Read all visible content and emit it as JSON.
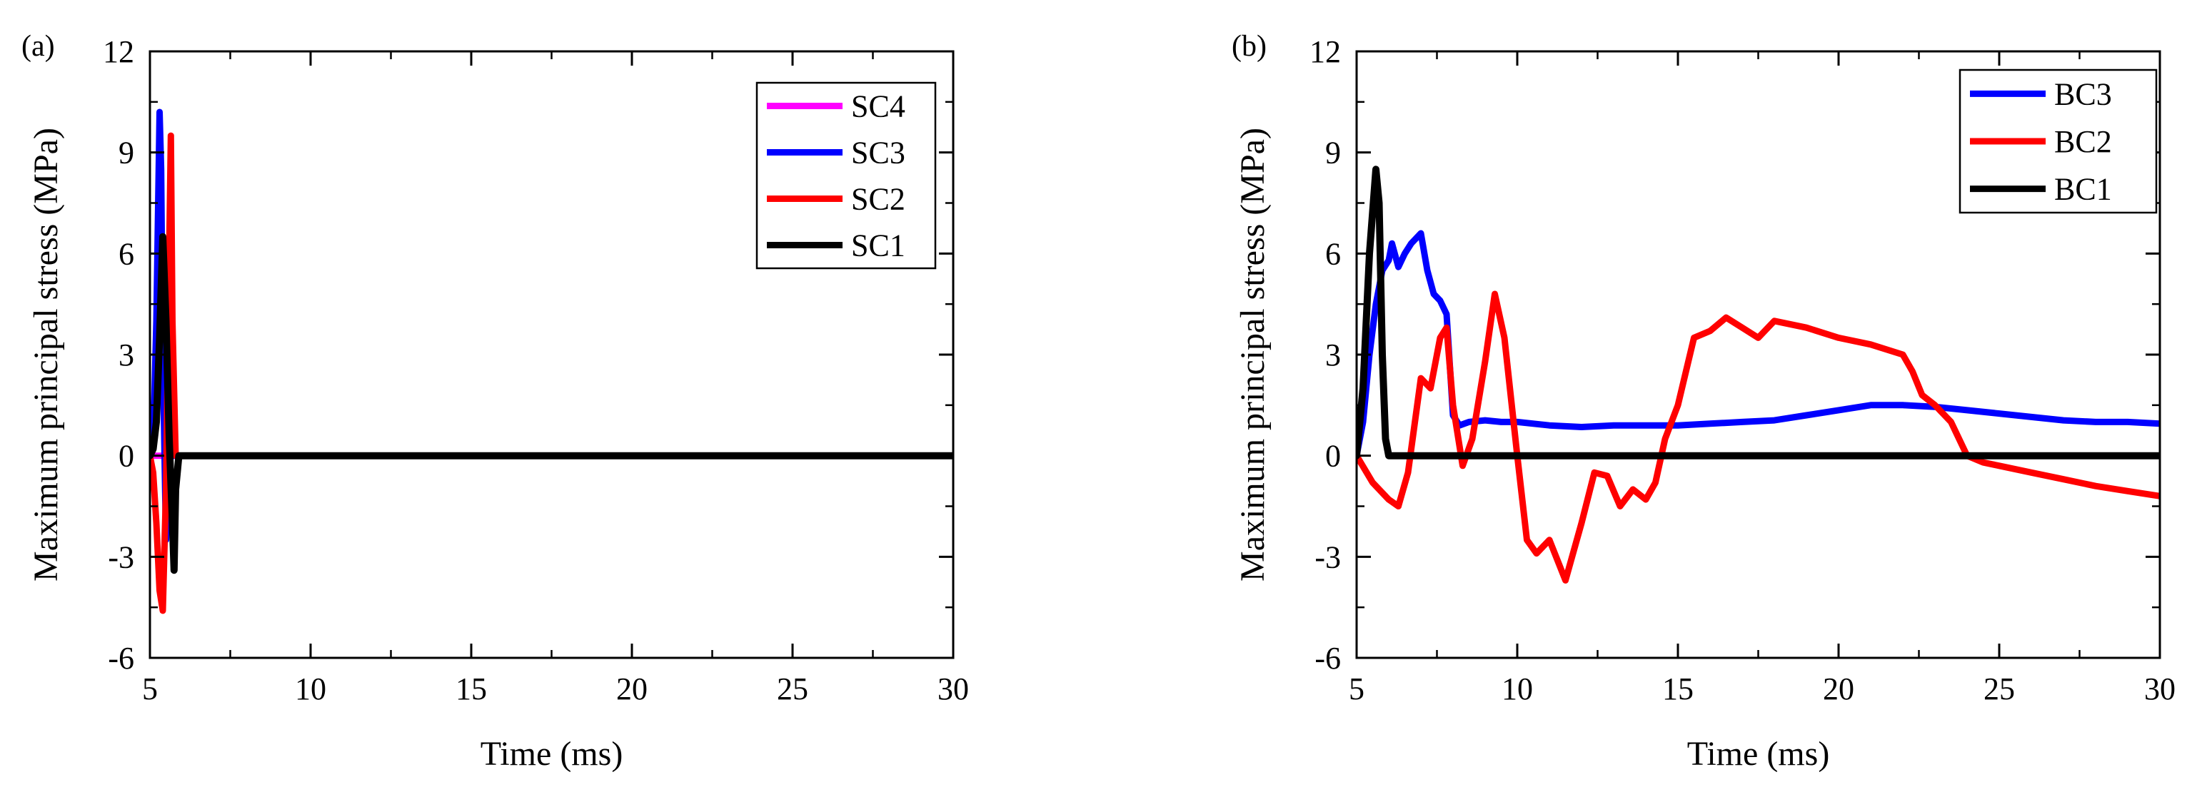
{
  "chart_data": [
    {
      "panel_label": "(a)",
      "type": "line",
      "xlabel": "Time (ms)",
      "ylabel": "Maximum principal stress (MPa)",
      "xlim": [
        5,
        30
      ],
      "ylim": [
        -6,
        12
      ],
      "xticks": [
        "5",
        "10",
        "15",
        "20",
        "25",
        "30"
      ],
      "yticks": [
        "-6",
        "-3",
        "0",
        "3",
        "6",
        "9",
        "12"
      ],
      "legend_position": "top-right",
      "series": [
        {
          "name": "SC4",
          "color": "#ff00ff",
          "x": [
            5.0,
            5.1,
            5.2,
            5.35,
            5.45,
            5.55,
            5.6,
            5.7,
            30
          ],
          "y": [
            0,
            0,
            0,
            0,
            0,
            0,
            0,
            0,
            0
          ]
        },
        {
          "name": "SC3",
          "color": "#0000ff",
          "x": [
            5.0,
            5.1,
            5.2,
            5.3,
            5.35,
            5.4,
            5.5,
            5.55,
            5.6,
            5.7,
            30
          ],
          "y": [
            0,
            0.3,
            4.0,
            10.2,
            8.5,
            3.0,
            -2.5,
            -1.0,
            0,
            0,
            0
          ]
        },
        {
          "name": "SC2",
          "color": "#ff0000",
          "x": [
            5.0,
            5.1,
            5.2,
            5.3,
            5.4,
            5.5,
            5.6,
            5.65,
            5.7,
            5.8,
            30
          ],
          "y": [
            0,
            -0.5,
            -2.0,
            -4.0,
            -4.6,
            -1.0,
            6.0,
            9.5,
            4.0,
            0,
            0
          ]
        },
        {
          "name": "SC1",
          "color": "#000000",
          "x": [
            5.0,
            5.1,
            5.2,
            5.3,
            5.4,
            5.5,
            5.6,
            5.7,
            5.75,
            5.8,
            5.9,
            30
          ],
          "y": [
            0,
            0.2,
            1.0,
            3.5,
            6.5,
            4.0,
            0.5,
            -2.0,
            -3.4,
            -1.0,
            0,
            0
          ]
        }
      ]
    },
    {
      "panel_label": "(b)",
      "type": "line",
      "xlabel": "Time (ms)",
      "ylabel": "Maximum principal stress (MPa)",
      "xlim": [
        5,
        30
      ],
      "ylim": [
        -6,
        12
      ],
      "xticks": [
        "5",
        "10",
        "15",
        "20",
        "25",
        "30"
      ],
      "yticks": [
        "-6",
        "-3",
        "0",
        "3",
        "6",
        "9",
        "12"
      ],
      "legend_position": "top-right",
      "series": [
        {
          "name": "BC3",
          "color": "#0000ff",
          "x": [
            5.0,
            5.2,
            5.4,
            5.6,
            5.8,
            6.0,
            6.1,
            6.3,
            6.5,
            6.7,
            7.0,
            7.2,
            7.4,
            7.6,
            7.8,
            8.0,
            8.2,
            8.5,
            9.0,
            9.5,
            10.0,
            11.0,
            12.0,
            13.0,
            14.0,
            15.0,
            16.0,
            17.0,
            18.0,
            19.0,
            20.0,
            21.0,
            22.0,
            23.0,
            24.0,
            25.0,
            26.0,
            27.0,
            28.0,
            29.0,
            30.0
          ],
          "y": [
            0,
            1.0,
            3.0,
            4.5,
            5.5,
            5.8,
            6.3,
            5.6,
            6.0,
            6.3,
            6.6,
            5.5,
            4.8,
            4.6,
            4.2,
            1.2,
            0.9,
            1.0,
            1.05,
            1.0,
            1.0,
            0.9,
            0.85,
            0.9,
            0.9,
            0.9,
            0.95,
            1.0,
            1.05,
            1.2,
            1.35,
            1.5,
            1.5,
            1.45,
            1.35,
            1.25,
            1.15,
            1.05,
            1.0,
            1.0,
            0.95
          ]
        },
        {
          "name": "BC2",
          "color": "#ff0000",
          "x": [
            5.0,
            5.5,
            6.0,
            6.3,
            6.6,
            7.0,
            7.3,
            7.6,
            7.8,
            8.0,
            8.3,
            8.6,
            9.0,
            9.3,
            9.6,
            10.0,
            10.3,
            10.6,
            11.0,
            11.5,
            12.0,
            12.4,
            12.8,
            13.2,
            13.6,
            14.0,
            14.3,
            14.6,
            15.0,
            15.5,
            16.0,
            16.5,
            17.0,
            17.5,
            18.0,
            19.0,
            20.0,
            21.0,
            22.0,
            22.3,
            22.6,
            23.0,
            23.5,
            24.0,
            24.5,
            25.0,
            26.0,
            27.0,
            28.0,
            29.0,
            30.0
          ],
          "y": [
            0,
            -0.8,
            -1.3,
            -1.5,
            -0.5,
            2.3,
            2.0,
            3.5,
            3.8,
            1.5,
            -0.3,
            0.5,
            2.8,
            4.8,
            3.5,
            0.0,
            -2.5,
            -2.9,
            -2.5,
            -3.7,
            -2.0,
            -0.5,
            -0.6,
            -1.5,
            -1.0,
            -1.3,
            -0.8,
            0.5,
            1.5,
            3.5,
            3.7,
            4.1,
            3.8,
            3.5,
            4.0,
            3.8,
            3.5,
            3.3,
            3.0,
            2.5,
            1.8,
            1.5,
            1.0,
            0.0,
            -0.2,
            -0.3,
            -0.5,
            -0.7,
            -0.9,
            -1.05,
            -1.2
          ]
        },
        {
          "name": "BC1",
          "color": "#000000",
          "x": [
            5.0,
            5.2,
            5.4,
            5.6,
            5.7,
            5.8,
            5.9,
            6.0,
            30.0
          ],
          "y": [
            0,
            2.0,
            6.0,
            8.5,
            7.5,
            3.0,
            0.5,
            0,
            0
          ]
        }
      ]
    }
  ]
}
